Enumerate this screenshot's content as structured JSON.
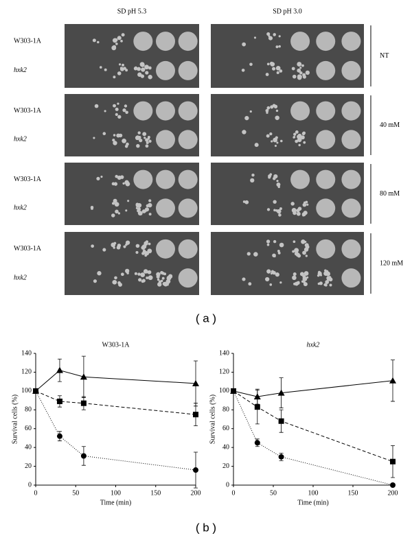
{
  "panel_a": {
    "label": "( a )",
    "columns": [
      "SD pH 5.3",
      "SD pH 3.0"
    ],
    "rows": [
      {
        "treatment": "NT",
        "strains": [
          "W303-1A",
          "hxk2"
        ]
      },
      {
        "treatment": "40 mM",
        "strains": [
          "W303-1A",
          "hxk2"
        ]
      },
      {
        "treatment": "80 mM",
        "strains": [
          "W303-1A",
          "hxk2"
        ]
      },
      {
        "treatment": "120 mM",
        "strains": [
          "W303-1A",
          "hxk2"
        ]
      }
    ]
  },
  "panel_b": {
    "label": "( b )"
  },
  "chart_data": [
    {
      "type": "line",
      "title": "W303-1A",
      "title_italic": false,
      "x_label": "Time (min)",
      "y_label": "Survival cells (%)",
      "x": [
        0,
        30,
        60,
        200
      ],
      "xlim": [
        0,
        200
      ],
      "xticks": [
        0,
        50,
        100,
        150,
        200
      ],
      "ylim": [
        0,
        140
      ],
      "yticks": [
        0,
        20,
        40,
        60,
        80,
        100,
        120,
        140
      ],
      "series": [
        {
          "color": "#000000",
          "marker": "triangle",
          "dash": "solid",
          "values": [
            100,
            122,
            115,
            108
          ],
          "errors": [
            0,
            12,
            22,
            24
          ]
        },
        {
          "color": "#000000",
          "marker": "square",
          "dash": "dashed",
          "values": [
            100,
            89,
            87,
            75
          ],
          "errors": [
            0,
            6,
            7,
            12
          ]
        },
        {
          "color": "#000000",
          "marker": "circle",
          "dash": "dotted",
          "values": [
            100,
            52,
            31,
            16
          ],
          "errors": [
            0,
            5,
            10,
            19
          ]
        }
      ]
    },
    {
      "type": "line",
      "title": "hxk2",
      "title_italic": true,
      "x_label": "Time (min)",
      "y_label": "Survival cells (%)",
      "x": [
        0,
        30,
        60,
        200
      ],
      "xlim": [
        0,
        200
      ],
      "xticks": [
        0,
        50,
        100,
        150,
        200
      ],
      "ylim": [
        0,
        140
      ],
      "yticks": [
        0,
        20,
        40,
        60,
        80,
        100,
        120,
        140
      ],
      "series": [
        {
          "color": "#000000",
          "marker": "triangle",
          "dash": "solid",
          "values": [
            100,
            94,
            98,
            111
          ],
          "errors": [
            0,
            8,
            16,
            22
          ]
        },
        {
          "color": "#000000",
          "marker": "square",
          "dash": "dashed",
          "values": [
            100,
            83,
            68,
            25
          ],
          "errors": [
            0,
            18,
            12,
            17
          ]
        },
        {
          "color": "#000000",
          "marker": "circle",
          "dash": "dotted",
          "values": [
            100,
            45,
            30,
            0
          ],
          "errors": [
            0,
            4,
            4,
            0
          ]
        }
      ]
    }
  ]
}
